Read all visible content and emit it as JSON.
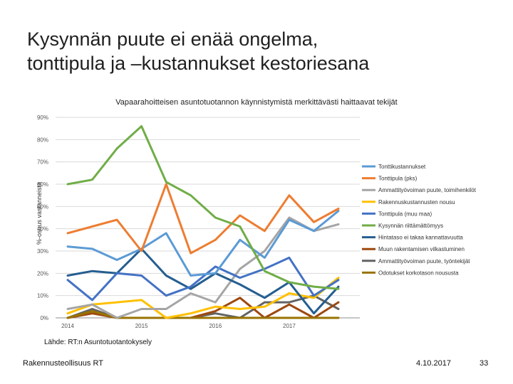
{
  "slide": {
    "title_line1": "Kysynnän puute ei enää ongelma,",
    "title_line2": "tonttipula ja –kustannukset kestoriesana",
    "source": "Lähde: RT:n Asuntotuotantokysely",
    "company": "Rakennusteollisuus RT",
    "date": "4.10.2017",
    "page_number": "33"
  },
  "chart_data": {
    "type": "line",
    "title": "Vapaarahoitteisen asuntotuotannon käynnistymistä merkittävästi haittaavat tekijät",
    "ylabel": "%-osuus vastanneista",
    "xlabel": "",
    "ylim": [
      0,
      90
    ],
    "yticks": [
      "0%",
      "10%",
      "20%",
      "30%",
      "40%",
      "50%",
      "60%",
      "70%",
      "80%",
      "90%"
    ],
    "year_labels": [
      "2014",
      "2015",
      "2016",
      "2017"
    ],
    "year_label_positions": [
      0,
      3,
      6,
      9
    ],
    "x_count": 12,
    "grid": true,
    "legend_position": "right",
    "series": [
      {
        "name": "Tonttikustannukset",
        "color": "#5b9bd5",
        "values": [
          32,
          31,
          26,
          31,
          38,
          19,
          20,
          35,
          27,
          44,
          39,
          48
        ]
      },
      {
        "name": "Tonttipula (pks)",
        "color": "#ed7d31",
        "values": [
          38,
          41,
          44,
          30,
          60,
          29,
          35,
          46,
          39,
          55,
          43,
          49
        ]
      },
      {
        "name": "Ammattityövoiman puute, toimihenkilöt",
        "color": "#a5a5a5",
        "values": [
          4,
          6,
          0,
          4,
          4,
          11,
          7,
          22,
          30,
          45,
          39,
          42
        ]
      },
      {
        "name": "Rakennuskustannusten nousu",
        "color": "#ffc000",
        "values": [
          2,
          6,
          7,
          8,
          0,
          2,
          5,
          4,
          5,
          11,
          9,
          18
        ]
      },
      {
        "name": "Tonttipula (muu maa)",
        "color": "#4472c4",
        "values": [
          17,
          8,
          20,
          19,
          10,
          14,
          23,
          18,
          22,
          27,
          10,
          17
        ]
      },
      {
        "name": "Kysynnän riittämättömyys",
        "color": "#70ad47",
        "values": [
          60,
          62,
          76,
          86,
          61,
          55,
          45,
          41,
          21,
          16,
          14,
          13
        ]
      },
      {
        "name": "Hintataso ei takaa kannattavuutta",
        "color": "#255e91",
        "values": [
          19,
          21,
          20,
          31,
          19,
          13,
          20,
          15,
          9,
          16,
          2,
          14
        ]
      },
      {
        "name": "Muun rakentamisen vilkastuminen",
        "color": "#9e480e",
        "values": [
          0,
          2,
          0,
          0,
          0,
          0,
          3,
          9,
          0,
          6,
          0,
          7
        ]
      },
      {
        "name": "Ammattityövoiman puute, työntekijät",
        "color": "#636363",
        "values": [
          0,
          4,
          0,
          0,
          0,
          0,
          2,
          0,
          7,
          7,
          10,
          4
        ]
      },
      {
        "name": "Odotukset korkotason noususta",
        "color": "#997300",
        "values": [
          0,
          3,
          0,
          0,
          0,
          0,
          0,
          0,
          0,
          0,
          0,
          0
        ]
      }
    ]
  }
}
